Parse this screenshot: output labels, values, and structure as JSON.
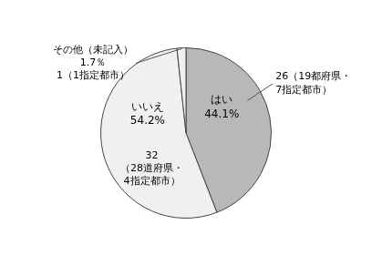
{
  "chart_data": {
    "type": "pie",
    "categories": [
      "はい",
      "いいえ",
      "その他"
    ],
    "values": [
      44.1,
      54.2,
      1.7
    ],
    "colors": [
      "#b8b8b8",
      "#f0f0f0",
      "#f0f0f0"
    ],
    "annotations": [
      "はい\n44.1%",
      "いいえ\n54.2%",
      "32\n（28道府県・\n4指定都市）",
      "26（19都府県・\n7指定都市）",
      "その他（未記入）\n1.7％\n1（1指定都市）"
    ]
  }
}
